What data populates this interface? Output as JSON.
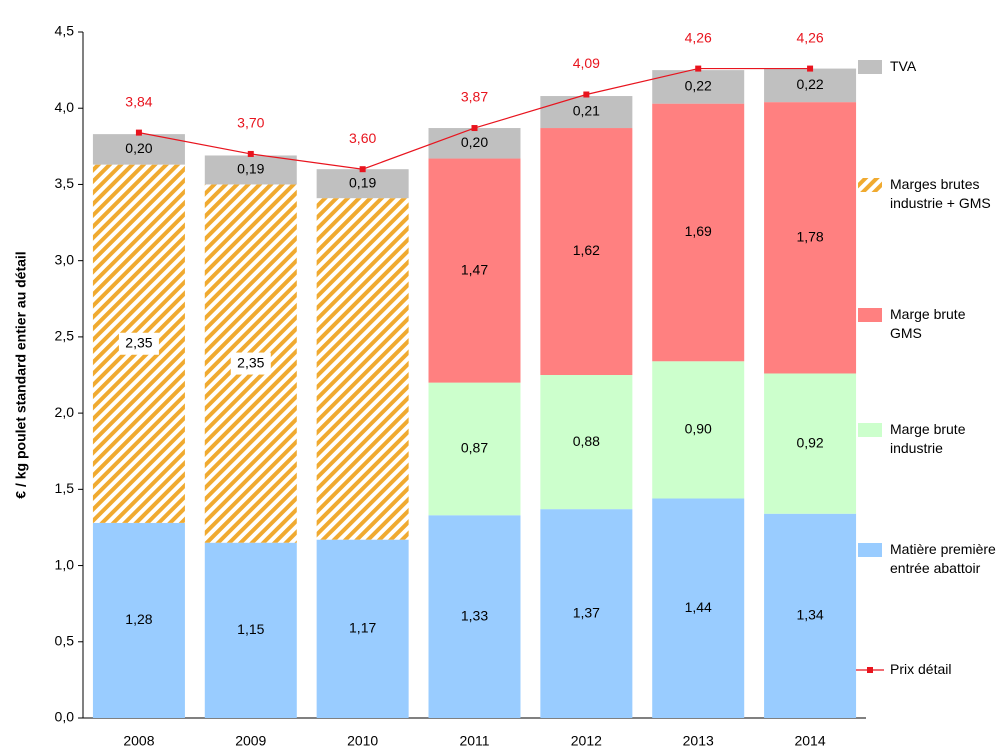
{
  "chart_data": {
    "type": "stacked-bar-line",
    "y_label": "€ / kg poulet standard entier au détail",
    "categories": [
      "2008",
      "2009",
      "2010",
      "2011",
      "2012",
      "2013",
      "2014"
    ],
    "ylim": [
      0,
      4.5
    ],
    "yticks": [
      {
        "value": 0,
        "label": "0,0"
      },
      {
        "value": 0.5,
        "label": "0,5"
      },
      {
        "value": 1,
        "label": "1,0"
      },
      {
        "value": 1.5,
        "label": "1,5"
      },
      {
        "value": 2,
        "label": "2,0"
      },
      {
        "value": 2.5,
        "label": "2,5"
      },
      {
        "value": 3,
        "label": "3,0"
      },
      {
        "value": 3.5,
        "label": "3,5"
      },
      {
        "value": 4,
        "label": "4,0"
      },
      {
        "value": 4.5,
        "label": "4,5"
      }
    ],
    "series": [
      {
        "name": "Matière première entrée abattoir",
        "color": "#99ccff",
        "values": [
          1.28,
          1.15,
          1.17,
          1.33,
          1.37,
          1.44,
          1.34
        ],
        "value_labels": [
          "1,28",
          "1,15",
          "1,17",
          "1,33",
          "1,37",
          "1,44",
          "1,34"
        ]
      },
      {
        "name": "Marges brutes industrie + GMS",
        "color": "#f0aa30",
        "hatch": true,
        "values": [
          2.35,
          2.35,
          2.24,
          null,
          null,
          null,
          null
        ],
        "value_labels": [
          "2,35",
          "2,35",
          null,
          null,
          null,
          null,
          null
        ]
      },
      {
        "name": "Marge brute industrie",
        "color": "#ccffcc",
        "values": [
          null,
          null,
          null,
          0.87,
          0.88,
          0.9,
          0.92
        ],
        "value_labels": [
          null,
          null,
          null,
          "0,87",
          "0,88",
          "0,90",
          "0,92"
        ]
      },
      {
        "name": "Marge brute GMS",
        "color": "#ff8080",
        "values": [
          null,
          null,
          null,
          1.47,
          1.62,
          1.69,
          1.78
        ],
        "value_labels": [
          null,
          null,
          null,
          "1,47",
          "1,62",
          "1,69",
          "1,78"
        ]
      },
      {
        "name": "TVA",
        "color": "#c0c0c0",
        "values": [
          0.2,
          0.19,
          0.19,
          0.2,
          0.21,
          0.22,
          0.22
        ],
        "value_labels": [
          "0,20",
          "0,19",
          "0,19",
          "0,20",
          "0,21",
          "0,22",
          "0,22"
        ]
      }
    ],
    "line": {
      "name": "Prix détail",
      "color": "#e8141e",
      "values": [
        3.84,
        3.7,
        3.6,
        3.87,
        4.09,
        4.26,
        4.26
      ],
      "value_labels": [
        "3,84",
        "3,70",
        "3,60",
        "3,87",
        "4,09",
        "4,26",
        "4,26"
      ]
    }
  }
}
